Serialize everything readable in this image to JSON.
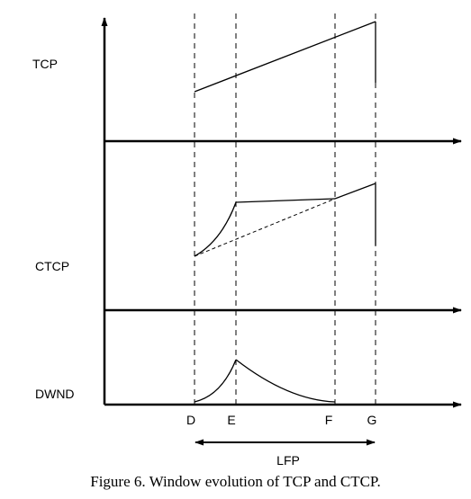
{
  "rows": [
    {
      "label": "TCP"
    },
    {
      "label": "CTCP"
    },
    {
      "label": "DWND"
    }
  ],
  "markers": [
    "D",
    "E",
    "F",
    "G"
  ],
  "span_label": "LFP",
  "caption": "Figure 6. Window evolution of TCP and CTCP."
}
